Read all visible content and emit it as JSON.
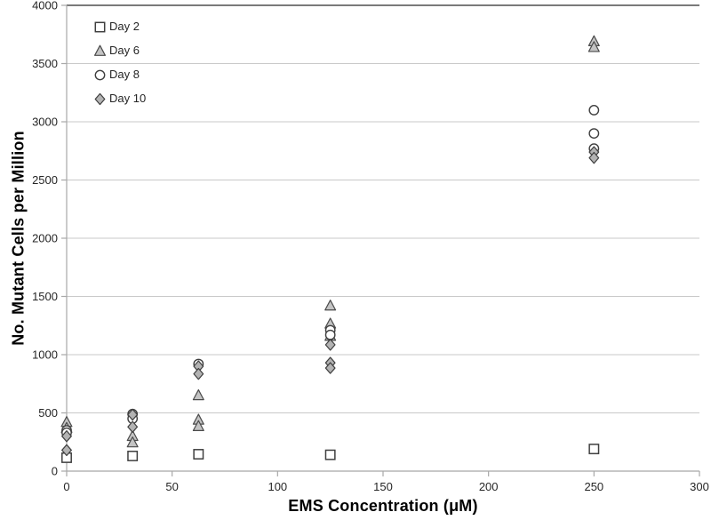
{
  "chart_data": {
    "type": "scatter",
    "title": "",
    "xlabel": "EMS Concentration (μM)",
    "ylabel": "No. Mutant Cells per Million",
    "xlim": [
      0,
      300
    ],
    "ylim": [
      0,
      4000
    ],
    "x_ticks": [
      0,
      50,
      100,
      150,
      200,
      250,
      300
    ],
    "y_ticks": [
      0,
      500,
      1000,
      1500,
      2000,
      2500,
      3000,
      3500,
      4000
    ],
    "grid": "horizontal-only",
    "legend_position": "inside-top-left",
    "series": [
      {
        "name": "Day 2",
        "marker": "square",
        "fill": "#ffffff",
        "stroke": "#3f3f3f",
        "points": [
          [
            0,
            115
          ],
          [
            31.25,
            130
          ],
          [
            62.5,
            145
          ],
          [
            125,
            140
          ],
          [
            250,
            190
          ]
        ]
      },
      {
        "name": "Day 6",
        "marker": "triangle",
        "fill": "#c4c4c4",
        "stroke": "#4a4a4a",
        "points": [
          [
            0,
            420
          ],
          [
            0,
            370
          ],
          [
            31.25,
            300
          ],
          [
            31.25,
            245
          ],
          [
            62.5,
            650
          ],
          [
            62.5,
            440
          ],
          [
            62.5,
            385
          ],
          [
            125,
            1420
          ],
          [
            125,
            1265
          ],
          [
            125,
            1160
          ],
          [
            250,
            3690
          ],
          [
            250,
            3640
          ]
        ]
      },
      {
        "name": "Day 8",
        "marker": "circle",
        "fill": "#ffffff",
        "stroke": "#3f3f3f",
        "points": [
          [
            0,
            350
          ],
          [
            0,
            330
          ],
          [
            31.25,
            490
          ],
          [
            31.25,
            450
          ],
          [
            62.5,
            920
          ],
          [
            125,
            1210
          ],
          [
            125,
            1170
          ],
          [
            250,
            3100
          ],
          [
            250,
            2900
          ],
          [
            250,
            2770
          ]
        ]
      },
      {
        "name": "Day 10",
        "marker": "diamond",
        "fill": "#b3b3b3",
        "stroke": "#3f3f3f",
        "points": [
          [
            0,
            300
          ],
          [
            0,
            180
          ],
          [
            31.25,
            485
          ],
          [
            31.25,
            380
          ],
          [
            62.5,
            900
          ],
          [
            62.5,
            835
          ],
          [
            125,
            1085
          ],
          [
            125,
            930
          ],
          [
            125,
            885
          ],
          [
            250,
            2740
          ],
          [
            250,
            2690
          ]
        ]
      }
    ],
    "colors": {
      "background": "#ffffff",
      "grid": "#c9c9c9",
      "top_border": "#4f4f4f",
      "axis": "#a8a8a8",
      "tick_label": "#262626"
    }
  }
}
